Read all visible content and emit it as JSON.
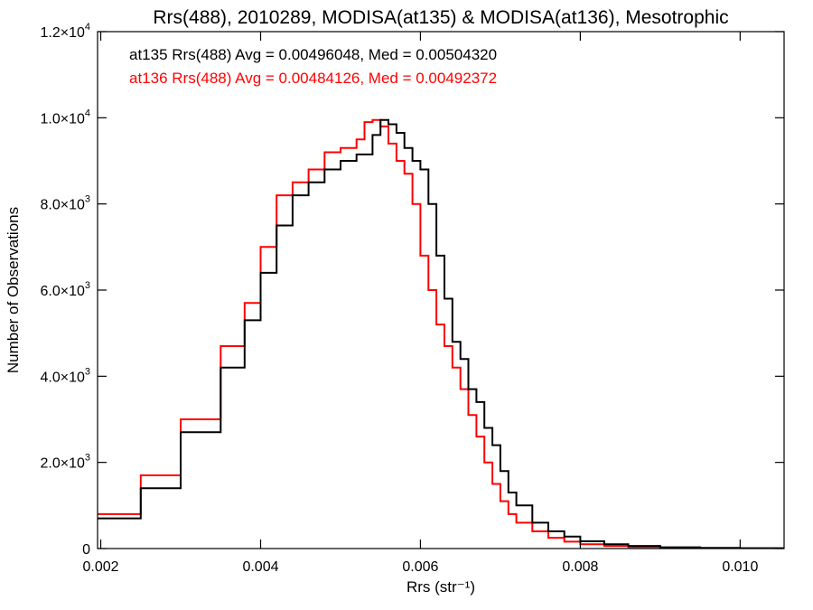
{
  "chart_data": {
    "type": "line",
    "title": "Rrs(488), 2010289, MODISA(at135) & MODISA(at136), Mesotrophic",
    "xlabel": "Rrs (str⁻¹)",
    "ylabel": "Number of Observations",
    "xlim": [
      0.00196,
      0.01055
    ],
    "ylim": [
      0,
      12000
    ],
    "x_ticks": [
      {
        "value": 0.002,
        "label": "0.002"
      },
      {
        "value": 0.004,
        "label": "0.004"
      },
      {
        "value": 0.006,
        "label": "0.006"
      },
      {
        "value": 0.008,
        "label": "0.008"
      },
      {
        "value": 0.01,
        "label": "0.010"
      }
    ],
    "y_ticks": [
      {
        "value": 0,
        "mant": "0",
        "exp": ""
      },
      {
        "value": 2000,
        "mant": "2.0×10",
        "exp": "3"
      },
      {
        "value": 4000,
        "mant": "4.0×10",
        "exp": "3"
      },
      {
        "value": 6000,
        "mant": "6.0×10",
        "exp": "3"
      },
      {
        "value": 8000,
        "mant": "8.0×10",
        "exp": "3"
      },
      {
        "value": 10000,
        "mant": "1.0×10",
        "exp": "4"
      },
      {
        "value": 12000,
        "mant": "1.2×10",
        "exp": "4"
      }
    ],
    "grid": false,
    "legend_position": "top-left",
    "annotations": [
      {
        "text": "at135 Rrs(488) Avg = 0.00496048, Med = 0.00504320",
        "color": "#000000"
      },
      {
        "text": "at136 Rrs(488) Avg = 0.00484126, Med = 0.00492372",
        "color": "#ff0000"
      }
    ],
    "series": [
      {
        "color": "#000000",
        "style": "step",
        "x": [
          0.00196,
          0.0025,
          0.003,
          0.0035,
          0.0038,
          0.004,
          0.0042,
          0.0044,
          0.0046,
          0.0048,
          0.005,
          0.0052,
          0.0054,
          0.0055,
          0.0056,
          0.0057,
          0.0058,
          0.0059,
          0.006,
          0.0061,
          0.0062,
          0.0063,
          0.0064,
          0.0065,
          0.0066,
          0.0067,
          0.0068,
          0.0069,
          0.007,
          0.0071,
          0.0072,
          0.0074,
          0.0076,
          0.0078,
          0.008,
          0.0083,
          0.0086,
          0.009,
          0.0095,
          0.01,
          0.01055
        ],
        "y": [
          700,
          1400,
          2700,
          4200,
          5300,
          6400,
          7500,
          8200,
          8500,
          8800,
          9000,
          9150,
          9600,
          9950,
          9850,
          9650,
          9300,
          9000,
          8800,
          8000,
          6800,
          5800,
          4800,
          4400,
          3700,
          3400,
          2800,
          2400,
          1800,
          1300,
          1000,
          600,
          400,
          280,
          170,
          100,
          60,
          30,
          15,
          8,
          5
        ]
      },
      {
        "color": "#ff0000",
        "style": "step",
        "x": [
          0.00196,
          0.0025,
          0.003,
          0.0035,
          0.0038,
          0.004,
          0.0042,
          0.0044,
          0.0046,
          0.0048,
          0.005,
          0.0052,
          0.0053,
          0.0054,
          0.0055,
          0.0056,
          0.0057,
          0.0058,
          0.0059,
          0.006,
          0.0061,
          0.0062,
          0.0063,
          0.0064,
          0.0065,
          0.0066,
          0.0067,
          0.0068,
          0.0069,
          0.007,
          0.0071,
          0.0072,
          0.0074,
          0.0076,
          0.0078,
          0.008,
          0.0083,
          0.0086,
          0.009,
          0.0095,
          0.01,
          0.01055
        ],
        "y": [
          800,
          1700,
          3000,
          4700,
          5700,
          7000,
          8200,
          8500,
          8800,
          9200,
          9300,
          9500,
          9900,
          9950,
          9800,
          9400,
          9000,
          8700,
          8000,
          6800,
          6000,
          5200,
          4700,
          4200,
          3700,
          3100,
          2600,
          2000,
          1500,
          1100,
          800,
          600,
          400,
          250,
          160,
          100,
          60,
          35,
          18,
          9,
          5,
          3
        ]
      }
    ]
  }
}
